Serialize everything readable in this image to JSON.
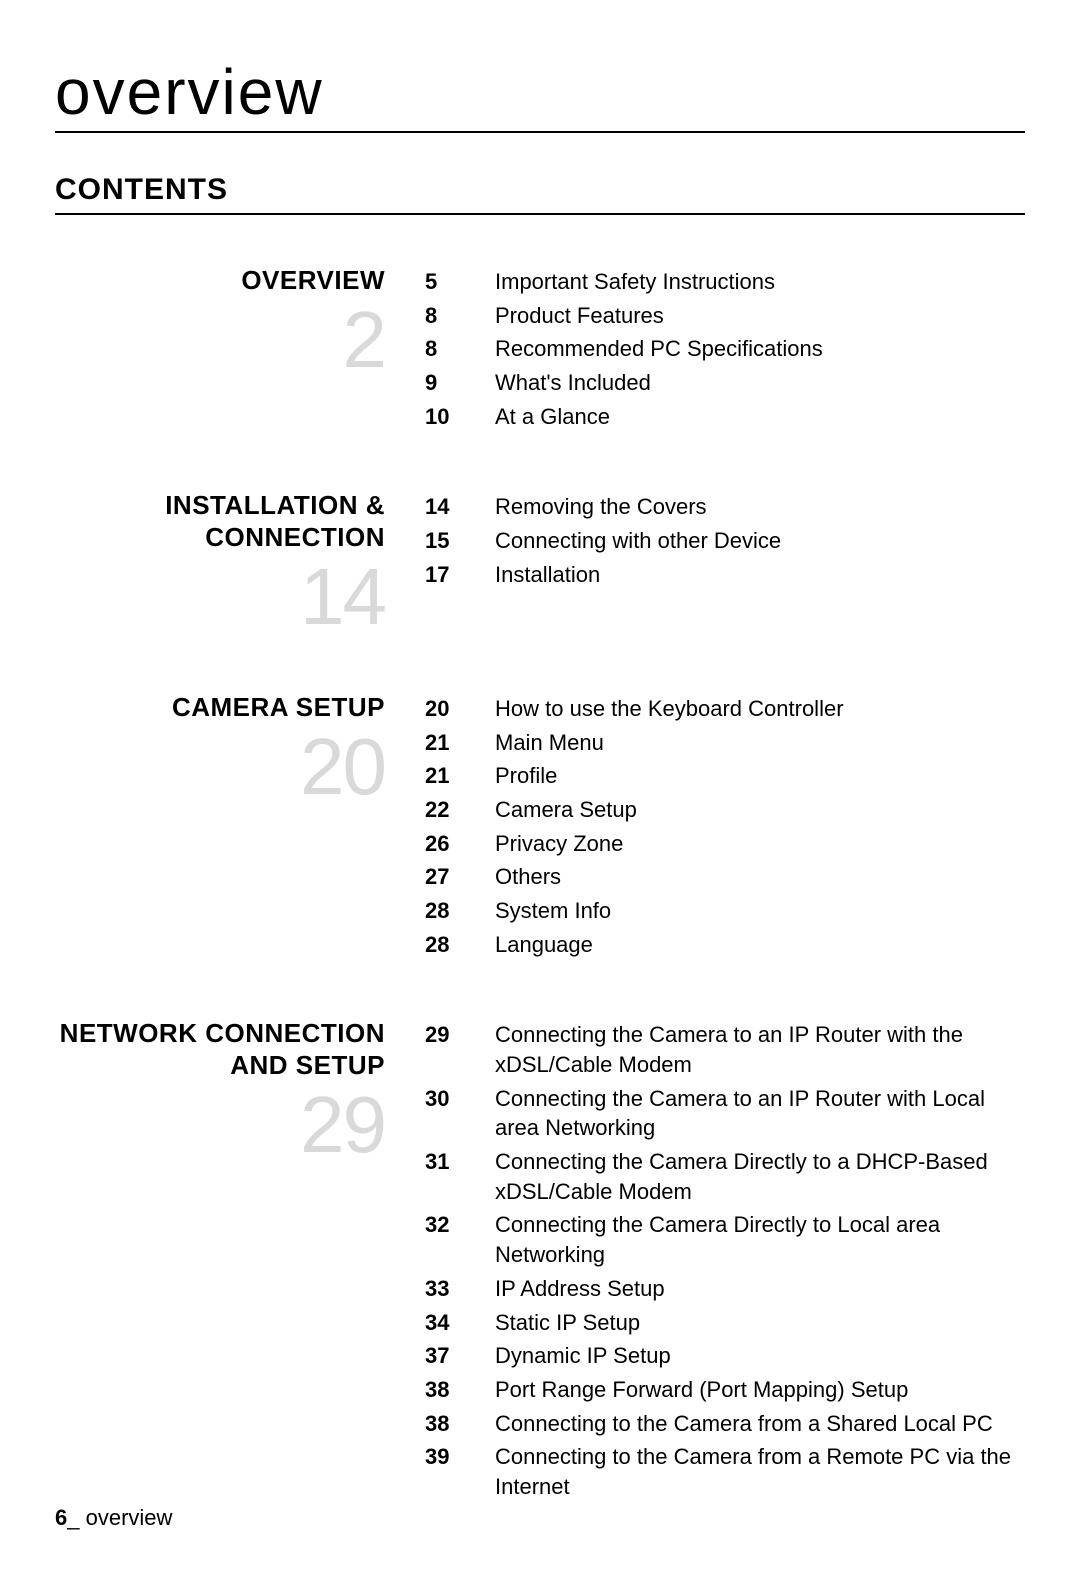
{
  "page_title": "overview",
  "contents_heading": "CONTENTS",
  "footer": {
    "page_number": "6",
    "separator": "_ ",
    "label": "overview"
  },
  "sections": [
    {
      "title": "OVERVIEW",
      "start_page": "2",
      "items": [
        {
          "page": "5",
          "title": "Important Safety Instructions"
        },
        {
          "page": "8",
          "title": "Product Features"
        },
        {
          "page": "8",
          "title": "Recommended PC Specifications"
        },
        {
          "page": "9",
          "title": "What's Included"
        },
        {
          "page": "10",
          "title": "At a Glance"
        }
      ]
    },
    {
      "title": "INSTALLATION & CONNECTION",
      "start_page": "14",
      "items": [
        {
          "page": "14",
          "title": "Removing the Covers"
        },
        {
          "page": "15",
          "title": "Connecting with other Device"
        },
        {
          "page": "17",
          "title": "Installation"
        }
      ]
    },
    {
      "title": "CAMERA SETUP",
      "start_page": "20",
      "items": [
        {
          "page": "20",
          "title": "How to use the Keyboard Controller"
        },
        {
          "page": "21",
          "title": "Main Menu"
        },
        {
          "page": "21",
          "title": "Profile"
        },
        {
          "page": "22",
          "title": "Camera Setup"
        },
        {
          "page": "26",
          "title": "Privacy Zone"
        },
        {
          "page": "27",
          "title": "Others"
        },
        {
          "page": "28",
          "title": "System Info"
        },
        {
          "page": "28",
          "title": "Language"
        }
      ]
    },
    {
      "title": "NETWORK CONNECTION AND SETUP",
      "start_page": "29",
      "items": [
        {
          "page": "29",
          "title": "Connecting the Camera to an IP Router with the xDSL/Cable Modem"
        },
        {
          "page": "30",
          "title": "Connecting the Camera to an IP Router with Local area Networking"
        },
        {
          "page": "31",
          "title": "Connecting the Camera Directly to a DHCP-Based xDSL/Cable Modem"
        },
        {
          "page": "32",
          "title": "Connecting the Camera Directly to Local area Networking"
        },
        {
          "page": "33",
          "title": "IP Address Setup"
        },
        {
          "page": "34",
          "title": "Static IP Setup"
        },
        {
          "page": "37",
          "title": "Dynamic IP Setup"
        },
        {
          "page": "38",
          "title": "Port Range Forward (Port Mapping) Setup"
        },
        {
          "page": "38",
          "title": "Connecting to the Camera from a Shared Local PC"
        },
        {
          "page": "39",
          "title": "Connecting to the Camera from a Remote PC via the Internet"
        }
      ]
    }
  ],
  "colors": {
    "text": "#000000",
    "background": "#ffffff",
    "large_number": "#d9d9d9",
    "rule": "#000000"
  },
  "typography": {
    "page_title_fontsize": 64,
    "contents_heading_fontsize": 30,
    "section_title_fontsize": 26,
    "section_number_fontsize": 80,
    "item_fontsize": 22,
    "footer_fontsize": 22
  }
}
